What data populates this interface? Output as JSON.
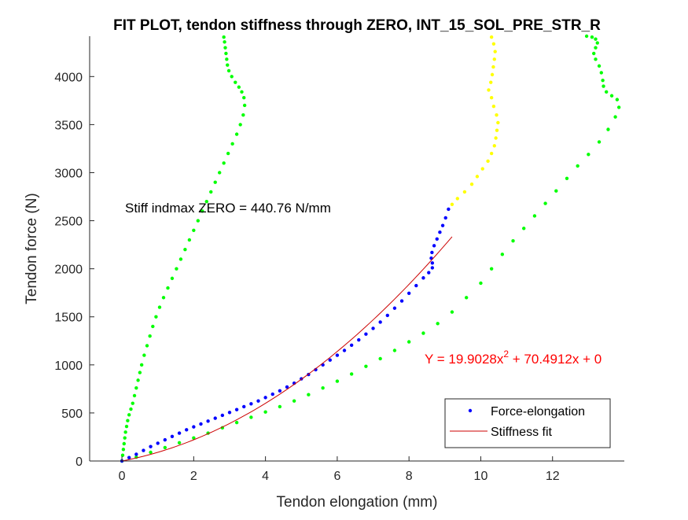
{
  "chart_data": {
    "type": "scatter",
    "title": "FIT PLOT, tendon stiffness through ZERO, INT_15_SOL_PRE_STR_R",
    "xlabel": "Tendon elongation (mm)",
    "ylabel": "Tendon force (N)",
    "xlim": [
      -0.9,
      14.0
    ],
    "ylim": [
      0,
      4420
    ],
    "xticks": [
      0,
      2,
      4,
      6,
      8,
      10,
      12
    ],
    "yticks": [
      0,
      500,
      1000,
      1500,
      2000,
      2500,
      3000,
      3500,
      4000
    ],
    "grid": false,
    "annotation": "Stiff indmax ZERO = 440.76 N/mm",
    "fit_equation": {
      "prefix": "Y = 19.9028x",
      "exponent": "2",
      "suffix": " + 70.4912x + 0",
      "color": "#ff0000"
    },
    "fit_coefficients": {
      "a": 19.9028,
      "b": 70.4912,
      "c": 0
    },
    "fit_x_range": [
      0,
      9.2
    ],
    "series": [
      {
        "name": "Force-elongation",
        "color": "#0000ff",
        "x": [
          0.0,
          0.2,
          0.4,
          0.6,
          0.8,
          1.0,
          1.2,
          1.4,
          1.6,
          1.8,
          2.0,
          2.2,
          2.4,
          2.6,
          2.8,
          3.0,
          3.2,
          3.4,
          3.6,
          3.8,
          4.0,
          4.2,
          4.4,
          4.6,
          4.8,
          5.0,
          5.2,
          5.4,
          5.6,
          5.8,
          6.0,
          6.2,
          6.4,
          6.6,
          6.8,
          7.0,
          7.2,
          7.4,
          7.6,
          7.8,
          8.0,
          8.2,
          8.4,
          8.55,
          8.65,
          8.65,
          8.62,
          8.64,
          8.7,
          8.78,
          8.86,
          8.94,
          9.02,
          9.1
        ],
        "y": [
          0,
          35,
          70,
          110,
          150,
          185,
          220,
          255,
          290,
          325,
          355,
          385,
          415,
          445,
          475,
          505,
          535,
          565,
          595,
          625,
          660,
          695,
          730,
          770,
          810,
          855,
          900,
          950,
          1000,
          1050,
          1100,
          1150,
          1205,
          1260,
          1320,
          1380,
          1445,
          1515,
          1590,
          1665,
          1745,
          1825,
          1905,
          1960,
          2010,
          2060,
          2110,
          2170,
          2240,
          2310,
          2380,
          2450,
          2530,
          2620
        ]
      },
      {
        "name": "",
        "color": "#ffff00",
        "x": [
          9.2,
          9.35,
          9.55,
          9.75,
          9.9,
          10.05,
          10.2,
          10.3,
          10.38,
          10.42,
          10.45,
          10.48,
          10.44,
          10.36,
          10.3,
          10.22,
          10.28,
          10.32,
          10.35,
          10.38,
          10.4,
          10.36,
          10.3
        ],
        "y": [
          2670,
          2730,
          2800,
          2880,
          2960,
          3040,
          3120,
          3200,
          3280,
          3360,
          3440,
          3520,
          3600,
          3690,
          3780,
          3860,
          3940,
          4020,
          4100,
          4180,
          4260,
          4340,
          4410
        ]
      },
      {
        "name": "",
        "color": "#00ff00",
        "x": [
          0.0,
          0.02,
          0.04,
          0.06,
          0.08,
          0.1,
          0.13,
          0.16,
          0.2,
          0.25,
          0.3,
          0.35,
          0.4,
          0.45,
          0.5,
          0.55,
          0.62,
          0.7,
          0.78,
          0.86,
          0.95,
          1.05,
          1.16,
          1.28,
          1.4,
          1.52,
          1.64,
          1.76,
          1.88,
          2.0,
          2.12,
          2.24,
          2.36,
          2.48,
          2.6,
          2.72,
          2.84,
          2.96,
          3.08,
          3.2,
          3.3,
          3.38,
          3.42,
          3.4,
          3.34,
          3.26,
          3.16,
          3.06,
          2.98,
          2.94,
          2.92,
          2.9,
          2.88,
          2.86,
          2.84
        ],
        "y": [
          0,
          60,
          120,
          180,
          240,
          300,
          360,
          420,
          480,
          540,
          600,
          680,
          760,
          840,
          920,
          1000,
          1100,
          1200,
          1300,
          1400,
          1500,
          1600,
          1700,
          1800,
          1900,
          2000,
          2100,
          2200,
          2300,
          2400,
          2500,
          2600,
          2700,
          2800,
          2900,
          3000,
          3100,
          3200,
          3300,
          3400,
          3500,
          3600,
          3700,
          3780,
          3840,
          3890,
          3940,
          4000,
          4060,
          4120,
          4180,
          4240,
          4300,
          4360,
          4410
        ]
      },
      {
        "name": "",
        "color": "#00ff00",
        "x": [
          0.0,
          0.4,
          0.8,
          1.2,
          1.6,
          2.0,
          2.4,
          2.8,
          3.2,
          3.6,
          4.0,
          4.4,
          4.8,
          5.2,
          5.6,
          6.0,
          6.4,
          6.8,
          7.2,
          7.6,
          8.0,
          8.4,
          8.8,
          9.2,
          9.6,
          10.0,
          10.3,
          10.6,
          10.9,
          11.2,
          11.5,
          11.8,
          12.1,
          12.4,
          12.7,
          13.0,
          13.3,
          13.55,
          13.75,
          13.85,
          13.8,
          13.65,
          13.5,
          13.42,
          13.4,
          13.36,
          13.3,
          13.2,
          13.15,
          13.2,
          13.25,
          13.2,
          13.1,
          12.95
        ],
        "y": [
          0,
          40,
          90,
          140,
          190,
          240,
          290,
          345,
          400,
          455,
          510,
          565,
          625,
          690,
          760,
          830,
          905,
          985,
          1065,
          1150,
          1240,
          1330,
          1430,
          1550,
          1700,
          1850,
          2000,
          2150,
          2290,
          2420,
          2550,
          2680,
          2810,
          2940,
          3070,
          3190,
          3320,
          3450,
          3580,
          3680,
          3760,
          3800,
          3840,
          3900,
          3960,
          4040,
          4110,
          4180,
          4240,
          4300,
          4350,
          4390,
          4410,
          4420
        ]
      },
      {
        "name": "Stiffness fit",
        "color": "#cc0000",
        "style": "line"
      }
    ],
    "legend": {
      "placement": "bottom-right",
      "entries": [
        {
          "label": "Force-elongation",
          "marker": "dot",
          "color": "#0000ff"
        },
        {
          "label": "Stiffness fit",
          "marker": "line",
          "color": "#cc0000"
        }
      ]
    }
  }
}
